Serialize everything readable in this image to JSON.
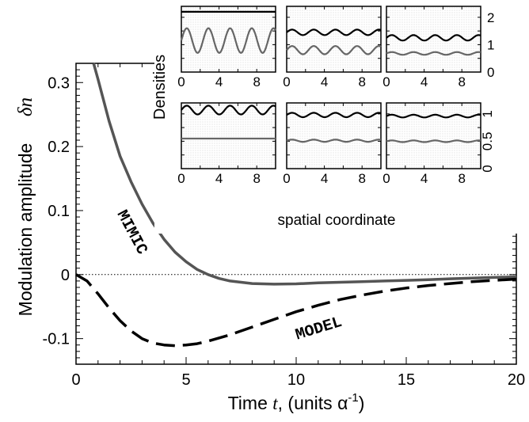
{
  "chart_data": {
    "main": {
      "type": "line",
      "xlabel_prefix": "Time",
      "xlabel_var": "t",
      "xlabel_units": ",  (units α",
      "xlabel_exp": "-1",
      "xlabel_close": ")",
      "ylabel": "Modulation amplitude",
      "ylabel_symbol": "δn",
      "xlim": [
        0,
        20
      ],
      "ylim": [
        -0.14,
        0.33
      ],
      "xticks": [
        "0",
        "5",
        "10",
        "15",
        "20"
      ],
      "yticks": [
        "0.3",
        "0.2",
        "0.1",
        "0",
        "-0.1"
      ],
      "zero_line": true,
      "series": [
        {
          "name": "MIMIC",
          "style": "solid",
          "color": "#555555",
          "x": [
            0.8,
            1.0,
            1.5,
            2.0,
            2.5,
            3.0,
            3.5,
            4.0,
            4.5,
            5.0,
            5.5,
            6.0,
            6.5,
            7.0,
            7.5,
            8.0,
            9.0,
            10.0,
            11.0,
            12.0,
            13.0,
            14.0,
            15.0,
            16.0,
            17.0,
            18.0,
            19.0,
            20.0
          ],
          "y": [
            0.33,
            0.305,
            0.24,
            0.185,
            0.145,
            0.11,
            0.08,
            0.055,
            0.035,
            0.02,
            0.008,
            0.0,
            -0.006,
            -0.01,
            -0.012,
            -0.014,
            -0.015,
            -0.0145,
            -0.013,
            -0.012,
            -0.011,
            -0.01,
            -0.009,
            -0.008,
            -0.0065,
            -0.0055,
            -0.0045,
            -0.0035
          ]
        },
        {
          "name": "MODEL",
          "style": "dashed",
          "color": "#000000",
          "x": [
            0,
            0.5,
            1.0,
            1.5,
            2.0,
            2.5,
            3.0,
            3.5,
            4.0,
            4.5,
            5.0,
            5.5,
            6.0,
            7.0,
            8.0,
            9.0,
            10.0,
            11.0,
            12.0,
            13.0,
            14.0,
            15.0,
            16.0,
            17.0,
            18.0,
            19.0,
            20.0
          ],
          "y": [
            0.0,
            -0.01,
            -0.03,
            -0.052,
            -0.072,
            -0.088,
            -0.1,
            -0.107,
            -0.11,
            -0.111,
            -0.11,
            -0.108,
            -0.104,
            -0.094,
            -0.082,
            -0.07,
            -0.058,
            -0.048,
            -0.039,
            -0.032,
            -0.026,
            -0.021,
            -0.017,
            -0.014,
            -0.011,
            -0.009,
            -0.007
          ]
        }
      ]
    },
    "inset": {
      "type": "line",
      "ylabel": "Densities",
      "xlabel": "spatial coordinate",
      "xlim": [
        0,
        10
      ],
      "xticks": [
        "0",
        "4",
        "8"
      ],
      "top_row_right_ticks": [
        "2",
        "1",
        "0"
      ],
      "top_row_ylim": [
        0,
        2.4
      ],
      "bottom_row_right_ticks": [
        "1",
        "0.5",
        "0"
      ],
      "bottom_row_ylim": [
        0,
        1.2
      ],
      "wave_period": 2.3,
      "panels": [
        {
          "row": 0,
          "col": 0,
          "curves": [
            {
              "color": "#000000",
              "mean": 2.2,
              "amp": 0.0
            },
            {
              "color": "#666666",
              "mean": 1.15,
              "amp": 0.45
            }
          ]
        },
        {
          "row": 0,
          "col": 1,
          "curves": [
            {
              "color": "#000000",
              "mean": 1.45,
              "amp": 0.1
            },
            {
              "color": "#666666",
              "mean": 0.8,
              "amp": 0.15
            }
          ]
        },
        {
          "row": 0,
          "col": 2,
          "curves": [
            {
              "color": "#000000",
              "mean": 1.25,
              "amp": 0.1
            },
            {
              "color": "#666666",
              "mean": 0.68,
              "amp": 0.05
            }
          ]
        },
        {
          "row": 1,
          "col": 0,
          "curves": [
            {
              "color": "#000000",
              "mean": 1.07,
              "amp": 0.08
            },
            {
              "color": "#666666",
              "mean": 0.55,
              "amp": 0.0
            }
          ]
        },
        {
          "row": 1,
          "col": 1,
          "curves": [
            {
              "color": "#000000",
              "mean": 0.98,
              "amp": 0.04
            },
            {
              "color": "#666666",
              "mean": 0.51,
              "amp": 0.02
            }
          ]
        },
        {
          "row": 1,
          "col": 2,
          "curves": [
            {
              "color": "#000000",
              "mean": 0.96,
              "amp": 0.025
            },
            {
              "color": "#666666",
              "mean": 0.5,
              "amp": 0.015
            }
          ]
        }
      ]
    }
  }
}
